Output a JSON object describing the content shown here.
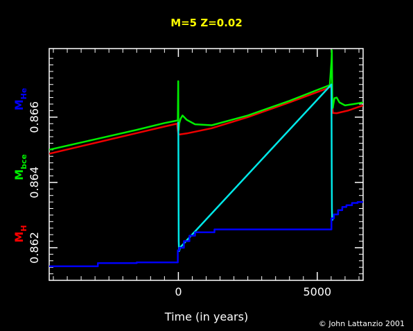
{
  "chart_data": {
    "type": "line",
    "title": "M=5 Z=0.02",
    "xlabel": "Time (in years)",
    "credit": "© John Lattanzio 2001",
    "xlim": [
      -4650,
      6650
    ],
    "ylim": [
      0.861,
      0.8681
    ],
    "x_ticks": [
      0,
      5000
    ],
    "y_ticks": [
      0.862,
      0.864,
      0.866
    ],
    "y_tick_labels": [
      "0.862",
      "0.864",
      "0.866"
    ],
    "grid": false,
    "background": "#000000",
    "axis_color": "#ffffff",
    "ylabels": [
      {
        "base": "M",
        "sub": "H",
        "color": "#ff0000"
      },
      {
        "base": "M",
        "sub": "bce",
        "color": "#00ee00"
      },
      {
        "base": "M",
        "sub": "He",
        "color": "#0000ff"
      }
    ],
    "series": [
      {
        "color": "#ee0000",
        "x": [
          -4650,
          -3000,
          -1500,
          -500,
          -50,
          0,
          50,
          300,
          1200,
          2500,
          4000,
          5200,
          5400,
          5500,
          5560,
          5700,
          6100,
          6650
        ],
        "y": [
          0.86488,
          0.86521,
          0.86551,
          0.86571,
          0.8658,
          0.86548,
          0.86547,
          0.8655,
          0.86566,
          0.866,
          0.86645,
          0.86683,
          0.8669,
          0.86694,
          0.86613,
          0.86612,
          0.8662,
          0.86636
        ]
      },
      {
        "color": "#00ee00",
        "x": [
          -4650,
          -3000,
          -1500,
          -500,
          -20,
          -5,
          0,
          10,
          30,
          80,
          150,
          300,
          600,
          1200,
          2500,
          4000,
          5200,
          5450,
          5510,
          5525,
          5540,
          5560,
          5580,
          5620,
          5700,
          5800,
          6000,
          6300,
          6650
        ],
        "y": [
          0.865,
          0.86532,
          0.86561,
          0.86582,
          0.8659,
          0.8671,
          0.8659,
          0.8656,
          0.8658,
          0.86595,
          0.86605,
          0.86592,
          0.86578,
          0.86575,
          0.86605,
          0.8665,
          0.8669,
          0.86698,
          0.8677,
          0.86805,
          0.8666,
          0.86628,
          0.8664,
          0.86658,
          0.8666,
          0.86645,
          0.86636,
          0.8664,
          0.86645
        ]
      },
      {
        "color": "#00e8e8",
        "x": [
          -10,
          0,
          5,
          12,
          22,
          30,
          40,
          55,
          5510,
          5520,
          5528,
          5535,
          5545,
          5560
        ],
        "y": [
          0.86585,
          0.86552,
          0.864,
          0.8622,
          0.86195,
          0.8619,
          0.86192,
          0.862,
          0.867,
          0.8645,
          0.8632,
          0.8629,
          0.86285,
          0.8629
        ]
      },
      {
        "color": "#0000ff",
        "x": [
          -4650,
          -2900,
          -2900,
          -1500,
          -1500,
          -20,
          -20,
          30,
          30,
          200,
          200,
          400,
          400,
          600,
          600,
          1300,
          1300,
          5510,
          5510,
          5600,
          5600,
          5750,
          5750,
          5900,
          5900,
          6050,
          6050,
          6250,
          6250,
          6450,
          6450,
          6650
        ],
        "y": [
          0.86143,
          0.86143,
          0.86153,
          0.86153,
          0.86155,
          0.86155,
          0.86192,
          0.86192,
          0.862,
          0.862,
          0.8622,
          0.8622,
          0.86237,
          0.86237,
          0.86247,
          0.86247,
          0.86256,
          0.86256,
          0.8629,
          0.8629,
          0.86302,
          0.86302,
          0.86315,
          0.86315,
          0.86325,
          0.86325,
          0.8633,
          0.8633,
          0.86337,
          0.86337,
          0.8634,
          0.8634
        ]
      }
    ]
  }
}
